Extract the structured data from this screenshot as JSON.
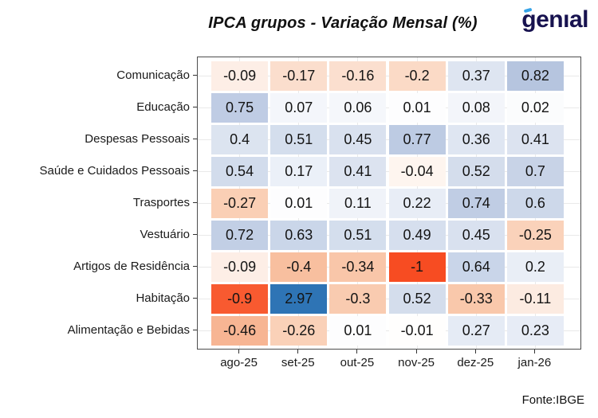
{
  "header": {
    "title": "IPCA grupos - Variação Mensal (%)",
    "logo_text": "genıal"
  },
  "footer": {
    "source": "Fonte:IBGE"
  },
  "brand_colors": {
    "logo_navy": "#17124f",
    "logo_accent_blue": "#35a3e8"
  },
  "chart_data": {
    "type": "heatmap",
    "title": "IPCA grupos - Variação Mensal (%)",
    "source": "Fonte:IBGE",
    "x_labels": [
      "ago-25",
      "set-25",
      "out-25",
      "nov-25",
      "dez-25",
      "jan-26"
    ],
    "y_labels": [
      "Comunicação",
      "Educação",
      "Despesas Pessoais",
      "Saúde e Cuidados Pessoais",
      "Trasportes",
      "Vestuário",
      "Artigos de Residência",
      "Habitação",
      "Alimentação e Bebidas"
    ],
    "values": [
      [
        -0.09,
        -0.17,
        -0.16,
        -0.2,
        0.37,
        0.82
      ],
      [
        0.75,
        0.07,
        0.06,
        0.01,
        0.08,
        0.02
      ],
      [
        0.4,
        0.51,
        0.45,
        0.77,
        0.36,
        0.41
      ],
      [
        0.54,
        0.17,
        0.41,
        -0.04,
        0.52,
        0.7
      ],
      [
        -0.27,
        0.01,
        0.11,
        0.22,
        0.74,
        0.6
      ],
      [
        0.72,
        0.63,
        0.51,
        0.49,
        0.45,
        -0.25
      ],
      [
        -0.09,
        -0.4,
        -0.34,
        -1,
        0.64,
        0.2
      ],
      [
        -0.9,
        2.97,
        -0.3,
        0.52,
        -0.33,
        -0.11
      ],
      [
        -0.46,
        -0.26,
        0.01,
        -0.01,
        0.27,
        0.23
      ]
    ],
    "value_labels": [
      [
        "-0.09",
        "-0.17",
        "-0.16",
        "-0.2",
        "0.37",
        "0.82"
      ],
      [
        "0.75",
        "0.07",
        "0.06",
        "0.01",
        "0.08",
        "0.02"
      ],
      [
        "0.4",
        "0.51",
        "0.45",
        "0.77",
        "0.36",
        "0.41"
      ],
      [
        "0.54",
        "0.17",
        "0.41",
        "-0.04",
        "0.52",
        "0.7"
      ],
      [
        "-0.27",
        "0.01",
        "0.11",
        "0.22",
        "0.74",
        "0.6"
      ],
      [
        "0.72",
        "0.63",
        "0.51",
        "0.49",
        "0.45",
        "-0.25"
      ],
      [
        "-0.09",
        "-0.4",
        "-0.34",
        "-1",
        "0.64",
        "0.2"
      ],
      [
        "-0.9",
        "2.97",
        "-0.3",
        "0.52",
        "-0.33",
        "-0.11"
      ],
      [
        "-0.46",
        "-0.26",
        "0.01",
        "-0.01",
        "0.27",
        "0.23"
      ]
    ],
    "cell_colors": [
      [
        "#fdeee6",
        "#fbdecd",
        "#fbdfcf",
        "#fbdac6",
        "#dee5f1",
        "#b6c5df"
      ],
      [
        "#bfcce4",
        "#f4f6fb",
        "#f5f7fb",
        "#fdfdfe",
        "#f3f5fa",
        "#fbfcfd"
      ],
      [
        "#dce4f0",
        "#d4deed",
        "#d9e1ef",
        "#bdcbe3",
        "#dfe6f2",
        "#dce3f0"
      ],
      [
        "#d2dcec",
        "#ebf0f8",
        "#dce3f0",
        "#fef5ef",
        "#d4ddec",
        "#c8d3e7"
      ],
      [
        "#facfb5",
        "#fdfdfe",
        "#f0f3f9",
        "#e8edf6",
        "#c0cde4",
        "#cdd8ea"
      ],
      [
        "#c2cfe5",
        "#cad6e9",
        "#d4deed",
        "#d6dfee",
        "#d9e1ef",
        "#fad2ba"
      ],
      [
        "#fdeee6",
        "#f8bf9f",
        "#f9c6a9",
        "#f74c22",
        "#c9d5e9",
        "#e9eef6"
      ],
      [
        "#f85a30",
        "#2e74b5",
        "#f9cbb0",
        "#d4ddec",
        "#f9c8ab",
        "#fcebe1"
      ],
      [
        "#f7b593",
        "#fad1b8",
        "#fdfdfe",
        "#fffefd",
        "#e5ebf5",
        "#e7ecf6"
      ]
    ],
    "colormap": {
      "type": "diverging red-white-blue",
      "negative_extreme": "#f74c22",
      "midpoint_zero": "#ffffff",
      "positive_extreme": "#2e74b5"
    },
    "layout_hints": {
      "grid": "light gray gridlines at category centers",
      "legend": "none",
      "panel_border": true
    }
  }
}
